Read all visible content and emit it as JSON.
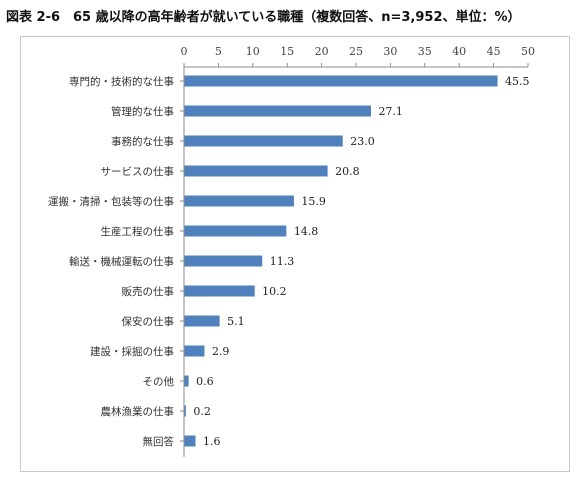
{
  "title": "図表 2-6　65 歳以降の高年齢者が就いている職種（複数回答、n=3,952、単位：%）",
  "colors": {
    "bar": "#4f81bd",
    "axis": "#8c8c8c",
    "frame": "#c9c9c9"
  },
  "chart_data": {
    "type": "bar",
    "orientation": "horizontal",
    "title": "図表 2-6　65 歳以降の高年齢者が就いている職種（複数回答、n=3,952、単位：%）",
    "xlim": [
      0,
      50
    ],
    "x_ticks": [
      0,
      5,
      10,
      15,
      20,
      25,
      30,
      35,
      40,
      45,
      50
    ],
    "x_axis_position": "top",
    "grid": false,
    "legend": "none",
    "categories": [
      "専門的・技術的な仕事",
      "管理的な仕事",
      "事務的な仕事",
      "サービスの仕事",
      "運搬・清掃・包装等の仕事",
      "生産工程の仕事",
      "輸送・機械運転の仕事",
      "販売の仕事",
      "保安の仕事",
      "建設・採掘の仕事",
      "その他",
      "農林漁業の仕事",
      "無回答"
    ],
    "values": [
      45.5,
      27.1,
      23.0,
      20.8,
      15.9,
      14.8,
      11.3,
      10.2,
      5.1,
      2.9,
      0.6,
      0.2,
      1.6
    ],
    "value_labels": [
      "45.5",
      "27.1",
      "23.0",
      "20.8",
      "15.9",
      "14.8",
      "11.3",
      "10.2",
      "5.1",
      "2.9",
      "0.6",
      "0.2",
      "1.6"
    ]
  }
}
